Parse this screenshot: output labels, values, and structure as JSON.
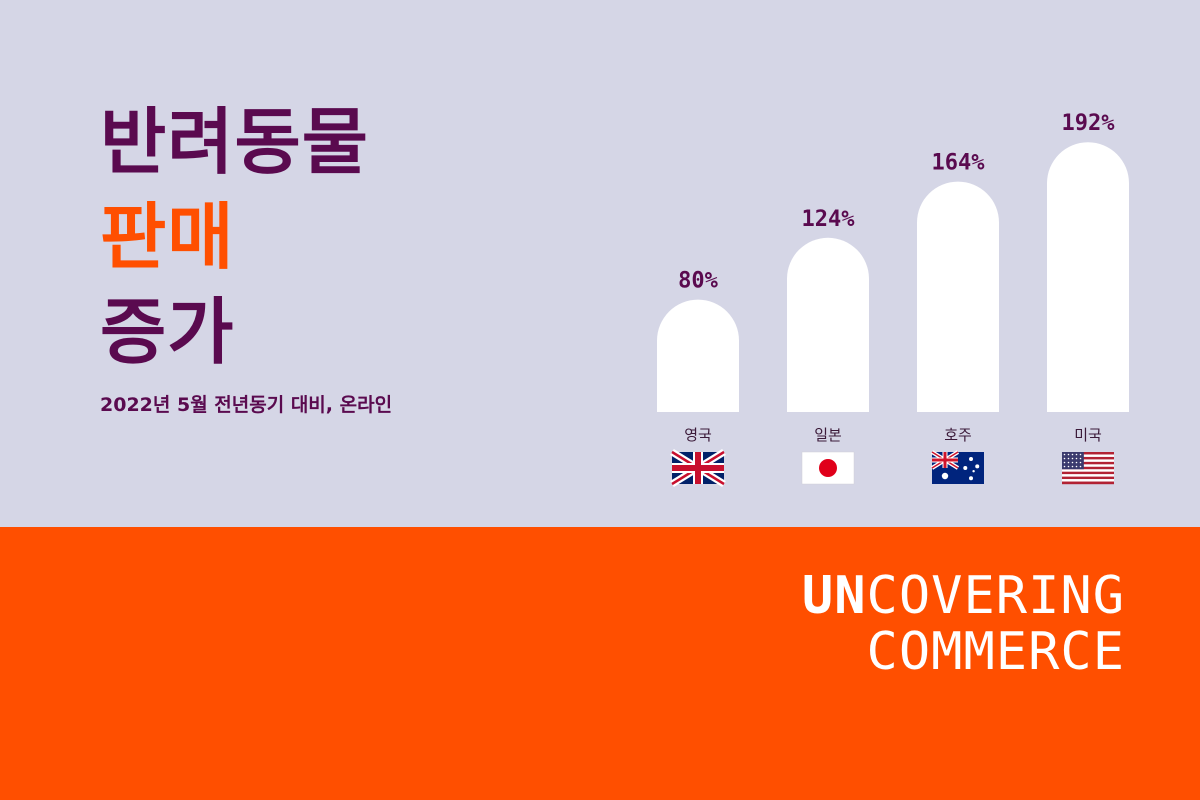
{
  "headline": {
    "line1": "반려동물",
    "line2": "판매",
    "line3": "증가",
    "subtitle": "2022년 5월 전년동기 대비, 온라인"
  },
  "colors": {
    "background_top": "#d5d6e6",
    "background_bottom": "#ff4f00",
    "headline": "#5a0a4f",
    "accent": "#ff4f00",
    "bar": "#ffffff"
  },
  "chart_data": {
    "type": "bar",
    "categories": [
      "영국",
      "일본",
      "호주",
      "미국"
    ],
    "values": [
      80,
      124,
      164,
      192
    ],
    "value_labels": [
      "80%",
      "124%",
      "164%",
      "192%"
    ],
    "category_icons": [
      "uk-flag-icon",
      "japan-flag-icon",
      "australia-flag-icon",
      "usa-flag-icon"
    ],
    "ylim": [
      0,
      200
    ],
    "bar_shape": "rounded-top",
    "grid": false,
    "legend": "none"
  },
  "brand": {
    "line1_bold": "UN",
    "line1_light": "COVERING",
    "line2": "COMMERCE"
  }
}
